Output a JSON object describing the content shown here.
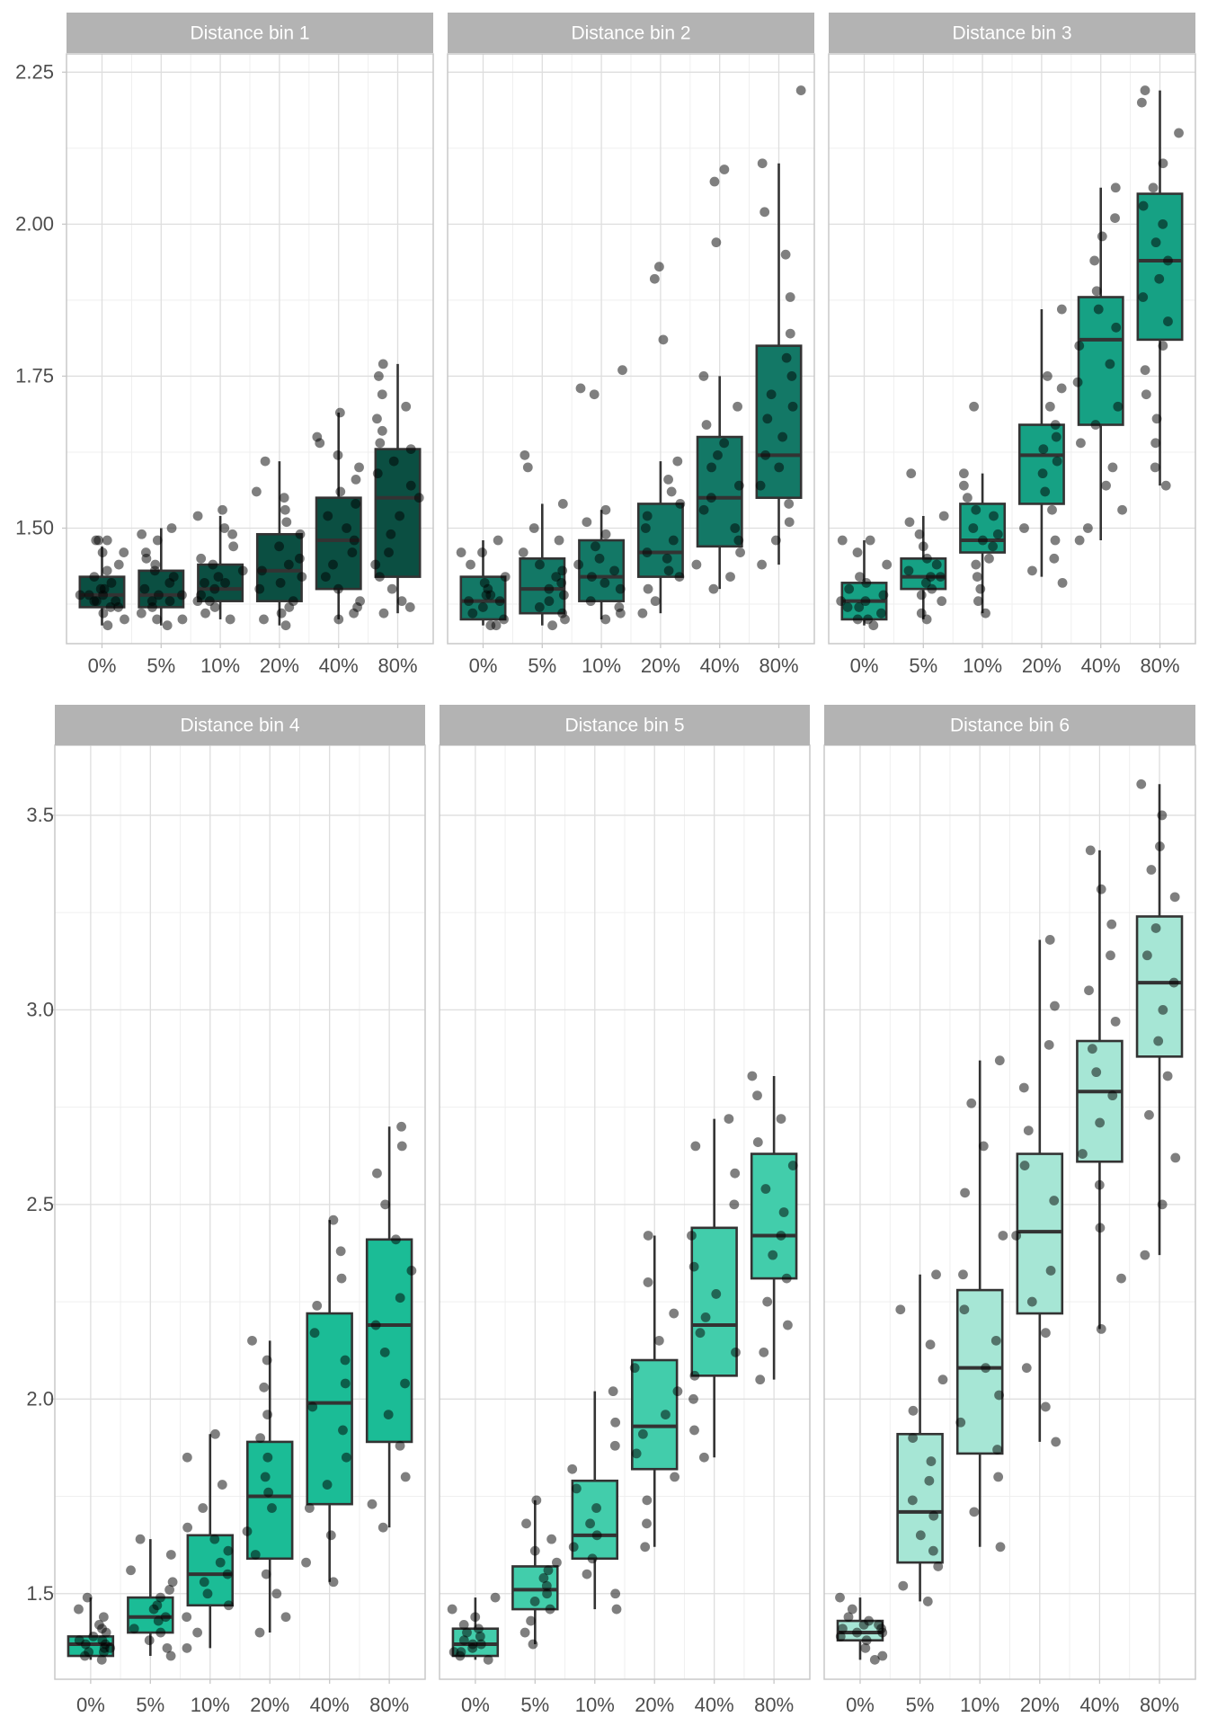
{
  "colors": {
    "strip_fill": "#b3b3b3",
    "strip_text": "#ffffff",
    "grid_major": "#dedede",
    "grid_minor": "#efefef",
    "panel_border": "#c8c8c8",
    "tick_text": "#4d4d4d",
    "box_border": "#333333",
    "points": "rgba(0,0,0,0.5)",
    "row1_fills": [
      "#0b4f42",
      "#137866",
      "#16a184"
    ],
    "row2_fills": [
      "#1bbc96",
      "#42cdab",
      "#a6e6d5"
    ]
  },
  "chart_data": [
    {
      "type": "box",
      "title": "Distance bin 1",
      "categories": [
        "0%",
        "5%",
        "10%",
        "20%",
        "40%",
        "80%"
      ],
      "ylim": [
        1.31,
        2.28
      ],
      "yticks": [
        "1.50",
        "1.75",
        "2.00",
        "2.25"
      ],
      "boxes": [
        {
          "q1": 1.37,
          "median": 1.39,
          "q3": 1.42,
          "wlo": 1.34,
          "whi": 1.47
        },
        {
          "q1": 1.37,
          "median": 1.39,
          "q3": 1.43,
          "wlo": 1.34,
          "whi": 1.5
        },
        {
          "q1": 1.38,
          "median": 1.4,
          "q3": 1.44,
          "wlo": 1.35,
          "whi": 1.52
        },
        {
          "q1": 1.38,
          "median": 1.43,
          "q3": 1.49,
          "wlo": 1.34,
          "whi": 1.61
        },
        {
          "q1": 1.4,
          "median": 1.48,
          "q3": 1.55,
          "wlo": 1.35,
          "whi": 1.69
        },
        {
          "q1": 1.42,
          "median": 1.55,
          "q3": 1.63,
          "wlo": 1.36,
          "whi": 1.77
        }
      ],
      "points": [
        [
          1.34,
          1.35,
          1.36,
          1.37,
          1.37,
          1.38,
          1.38,
          1.38,
          1.39,
          1.39,
          1.39,
          1.4,
          1.4,
          1.41,
          1.42,
          1.43,
          1.44,
          1.46,
          1.46,
          1.48,
          1.48,
          1.48
        ],
        [
          1.34,
          1.35,
          1.35,
          1.36,
          1.37,
          1.38,
          1.38,
          1.39,
          1.39,
          1.4,
          1.41,
          1.42,
          1.43,
          1.44,
          1.45,
          1.46,
          1.48,
          1.49,
          1.5
        ],
        [
          1.35,
          1.36,
          1.37,
          1.38,
          1.38,
          1.39,
          1.4,
          1.41,
          1.41,
          1.42,
          1.43,
          1.44,
          1.45,
          1.47,
          1.49,
          1.5,
          1.52,
          1.53
        ],
        [
          1.34,
          1.35,
          1.36,
          1.37,
          1.38,
          1.4,
          1.41,
          1.42,
          1.43,
          1.44,
          1.45,
          1.47,
          1.49,
          1.51,
          1.53,
          1.55,
          1.56,
          1.61
        ],
        [
          1.35,
          1.36,
          1.37,
          1.38,
          1.4,
          1.42,
          1.44,
          1.46,
          1.48,
          1.5,
          1.52,
          1.54,
          1.56,
          1.58,
          1.6,
          1.62,
          1.64,
          1.65,
          1.69
        ],
        [
          1.36,
          1.37,
          1.38,
          1.4,
          1.42,
          1.44,
          1.46,
          1.49,
          1.52,
          1.55,
          1.57,
          1.59,
          1.61,
          1.63,
          1.64,
          1.66,
          1.68,
          1.7,
          1.72,
          1.75,
          1.77
        ]
      ]
    },
    {
      "type": "box",
      "title": "Distance bin 2",
      "categories": [
        "0%",
        "5%",
        "10%",
        "20%",
        "40%",
        "80%"
      ],
      "ylim": [
        1.31,
        2.28
      ],
      "yticks": [
        "1.50",
        "1.75",
        "2.00",
        "2.25"
      ],
      "boxes": [
        {
          "q1": 1.35,
          "median": 1.38,
          "q3": 1.42,
          "wlo": 1.34,
          "whi": 1.48
        },
        {
          "q1": 1.36,
          "median": 1.4,
          "q3": 1.45,
          "wlo": 1.34,
          "whi": 1.54
        },
        {
          "q1": 1.38,
          "median": 1.42,
          "q3": 1.48,
          "wlo": 1.35,
          "whi": 1.53
        },
        {
          "q1": 1.42,
          "median": 1.46,
          "q3": 1.54,
          "wlo": 1.36,
          "whi": 1.61
        },
        {
          "q1": 1.47,
          "median": 1.55,
          "q3": 1.65,
          "wlo": 1.4,
          "whi": 1.75
        },
        {
          "q1": 1.55,
          "median": 1.62,
          "q3": 1.8,
          "wlo": 1.44,
          "whi": 2.1
        }
      ],
      "points": [
        [
          1.34,
          1.34,
          1.35,
          1.36,
          1.37,
          1.38,
          1.38,
          1.39,
          1.39,
          1.4,
          1.41,
          1.42,
          1.44,
          1.46,
          1.46,
          1.48
        ],
        [
          1.34,
          1.35,
          1.36,
          1.37,
          1.38,
          1.39,
          1.4,
          1.41,
          1.42,
          1.43,
          1.44,
          1.46,
          1.48,
          1.5,
          1.54,
          1.6,
          1.62
        ],
        [
          1.35,
          1.36,
          1.37,
          1.38,
          1.4,
          1.41,
          1.42,
          1.43,
          1.44,
          1.45,
          1.47,
          1.49,
          1.51,
          1.53,
          1.72,
          1.73,
          1.76
        ],
        [
          1.36,
          1.38,
          1.4,
          1.42,
          1.43,
          1.45,
          1.46,
          1.48,
          1.5,
          1.52,
          1.54,
          1.56,
          1.58,
          1.61,
          1.81,
          1.91,
          1.93
        ],
        [
          1.4,
          1.42,
          1.44,
          1.46,
          1.48,
          1.5,
          1.53,
          1.55,
          1.57,
          1.6,
          1.62,
          1.64,
          1.67,
          1.7,
          1.75,
          1.97,
          2.07,
          2.09
        ],
        [
          1.44,
          1.48,
          1.51,
          1.54,
          1.57,
          1.6,
          1.62,
          1.65,
          1.68,
          1.7,
          1.72,
          1.75,
          1.78,
          1.82,
          1.88,
          1.95,
          2.02,
          2.1,
          2.22
        ]
      ]
    },
    {
      "type": "box",
      "title": "Distance bin 3",
      "categories": [
        "0%",
        "5%",
        "10%",
        "20%",
        "40%",
        "80%"
      ],
      "ylim": [
        1.31,
        2.28
      ],
      "yticks": [
        "1.50",
        "1.75",
        "2.00",
        "2.25"
      ],
      "boxes": [
        {
          "q1": 1.35,
          "median": 1.38,
          "q3": 1.41,
          "wlo": 1.34,
          "whi": 1.48
        },
        {
          "q1": 1.4,
          "median": 1.42,
          "q3": 1.45,
          "wlo": 1.35,
          "whi": 1.52
        },
        {
          "q1": 1.46,
          "median": 1.48,
          "q3": 1.54,
          "wlo": 1.36,
          "whi": 1.59
        },
        {
          "q1": 1.54,
          "median": 1.62,
          "q3": 1.67,
          "wlo": 1.42,
          "whi": 1.86
        },
        {
          "q1": 1.67,
          "median": 1.81,
          "q3": 1.88,
          "wlo": 1.48,
          "whi": 2.06
        },
        {
          "q1": 1.81,
          "median": 1.94,
          "q3": 2.05,
          "wlo": 1.57,
          "whi": 2.22
        }
      ],
      "points": [
        [
          1.34,
          1.35,
          1.35,
          1.36,
          1.37,
          1.37,
          1.38,
          1.38,
          1.39,
          1.4,
          1.41,
          1.42,
          1.44,
          1.46,
          1.48,
          1.48
        ],
        [
          1.35,
          1.36,
          1.38,
          1.39,
          1.4,
          1.41,
          1.42,
          1.42,
          1.43,
          1.44,
          1.45,
          1.47,
          1.49,
          1.51,
          1.52,
          1.59
        ],
        [
          1.36,
          1.38,
          1.4,
          1.42,
          1.44,
          1.45,
          1.47,
          1.48,
          1.49,
          1.5,
          1.52,
          1.53,
          1.55,
          1.57,
          1.59,
          1.7
        ],
        [
          1.41,
          1.43,
          1.45,
          1.48,
          1.5,
          1.53,
          1.56,
          1.59,
          1.61,
          1.63,
          1.65,
          1.67,
          1.7,
          1.73,
          1.75,
          1.86
        ],
        [
          1.48,
          1.5,
          1.53,
          1.57,
          1.6,
          1.64,
          1.67,
          1.7,
          1.74,
          1.77,
          1.8,
          1.83,
          1.86,
          1.89,
          1.94,
          1.98,
          2.01,
          2.06
        ],
        [
          1.57,
          1.6,
          1.64,
          1.68,
          1.72,
          1.76,
          1.8,
          1.84,
          1.88,
          1.91,
          1.94,
          1.97,
          2.0,
          2.03,
          2.06,
          2.1,
          2.15,
          2.2,
          2.22
        ]
      ]
    },
    {
      "type": "box",
      "title": "Distance bin 4",
      "categories": [
        "0%",
        "5%",
        "10%",
        "20%",
        "40%",
        "80%"
      ],
      "ylim": [
        1.28,
        3.68
      ],
      "yticks": [
        "1.5",
        "2.0",
        "2.5",
        "3.0",
        "3.5"
      ],
      "boxes": [
        {
          "q1": 1.34,
          "median": 1.37,
          "q3": 1.39,
          "wlo": 1.33,
          "whi": 1.49
        },
        {
          "q1": 1.4,
          "median": 1.44,
          "q3": 1.49,
          "wlo": 1.34,
          "whi": 1.64
        },
        {
          "q1": 1.47,
          "median": 1.55,
          "q3": 1.65,
          "wlo": 1.36,
          "whi": 1.91
        },
        {
          "q1": 1.59,
          "median": 1.75,
          "q3": 1.89,
          "wlo": 1.4,
          "whi": 2.15
        },
        {
          "q1": 1.73,
          "median": 1.99,
          "q3": 2.22,
          "wlo": 1.53,
          "whi": 2.46
        },
        {
          "q1": 1.89,
          "median": 2.19,
          "q3": 2.41,
          "wlo": 1.67,
          "whi": 2.7
        }
      ],
      "points": [
        [
          1.33,
          1.34,
          1.35,
          1.35,
          1.36,
          1.36,
          1.37,
          1.37,
          1.38,
          1.38,
          1.39,
          1.4,
          1.41,
          1.42,
          1.44,
          1.46,
          1.49
        ],
        [
          1.34,
          1.36,
          1.38,
          1.4,
          1.41,
          1.43,
          1.44,
          1.46,
          1.47,
          1.49,
          1.51,
          1.53,
          1.56,
          1.6,
          1.64
        ],
        [
          1.36,
          1.4,
          1.44,
          1.47,
          1.5,
          1.53,
          1.55,
          1.58,
          1.61,
          1.64,
          1.67,
          1.72,
          1.78,
          1.85,
          1.91
        ],
        [
          1.4,
          1.44,
          1.5,
          1.55,
          1.6,
          1.66,
          1.72,
          1.76,
          1.8,
          1.85,
          1.9,
          1.96,
          2.03,
          2.1,
          2.15
        ],
        [
          1.53,
          1.58,
          1.65,
          1.72,
          1.78,
          1.85,
          1.92,
          1.98,
          2.04,
          2.1,
          2.17,
          2.24,
          2.31,
          2.38,
          2.46
        ],
        [
          1.67,
          1.73,
          1.8,
          1.88,
          1.96,
          2.04,
          2.12,
          2.19,
          2.26,
          2.33,
          2.41,
          2.5,
          2.58,
          2.65,
          2.7
        ]
      ]
    },
    {
      "type": "box",
      "title": "Distance bin 5",
      "categories": [
        "0%",
        "5%",
        "10%",
        "20%",
        "40%",
        "80%"
      ],
      "ylim": [
        1.28,
        3.68
      ],
      "yticks": [
        "1.5",
        "2.0",
        "2.5",
        "3.0",
        "3.5"
      ],
      "boxes": [
        {
          "q1": 1.34,
          "median": 1.37,
          "q3": 1.41,
          "wlo": 1.33,
          "whi": 1.49
        },
        {
          "q1": 1.46,
          "median": 1.51,
          "q3": 1.57,
          "wlo": 1.37,
          "whi": 1.74
        },
        {
          "q1": 1.59,
          "median": 1.65,
          "q3": 1.79,
          "wlo": 1.46,
          "whi": 2.02
        },
        {
          "q1": 1.82,
          "median": 1.93,
          "q3": 2.1,
          "wlo": 1.62,
          "whi": 2.42
        },
        {
          "q1": 2.06,
          "median": 2.19,
          "q3": 2.44,
          "wlo": 1.85,
          "whi": 2.72
        },
        {
          "q1": 2.31,
          "median": 2.42,
          "q3": 2.63,
          "wlo": 2.05,
          "whi": 2.83
        }
      ],
      "points": [
        [
          1.33,
          1.34,
          1.35,
          1.35,
          1.36,
          1.37,
          1.37,
          1.38,
          1.39,
          1.4,
          1.41,
          1.42,
          1.44,
          1.46,
          1.49
        ],
        [
          1.37,
          1.4,
          1.43,
          1.46,
          1.48,
          1.5,
          1.52,
          1.54,
          1.56,
          1.58,
          1.61,
          1.64,
          1.68,
          1.74
        ],
        [
          1.46,
          1.5,
          1.55,
          1.59,
          1.62,
          1.65,
          1.68,
          1.72,
          1.77,
          1.82,
          1.88,
          1.94,
          2.02
        ],
        [
          1.62,
          1.68,
          1.74,
          1.8,
          1.86,
          1.91,
          1.96,
          2.02,
          2.08,
          2.15,
          2.22,
          2.3,
          2.42
        ],
        [
          1.85,
          1.92,
          2.0,
          2.06,
          2.12,
          2.17,
          2.21,
          2.27,
          2.34,
          2.42,
          2.5,
          2.58,
          2.65,
          2.72
        ],
        [
          2.05,
          2.12,
          2.19,
          2.25,
          2.31,
          2.37,
          2.42,
          2.48,
          2.54,
          2.6,
          2.66,
          2.72,
          2.78,
          2.83
        ]
      ]
    },
    {
      "type": "box",
      "title": "Distance bin 6",
      "categories": [
        "0%",
        "5%",
        "10%",
        "20%",
        "40%",
        "80%"
      ],
      "ylim": [
        1.28,
        3.68
      ],
      "yticks": [
        "1.5",
        "2.0",
        "2.5",
        "3.0",
        "3.5"
      ],
      "boxes": [
        {
          "q1": 1.38,
          "median": 1.4,
          "q3": 1.43,
          "wlo": 1.33,
          "whi": 1.49
        },
        {
          "q1": 1.58,
          "median": 1.71,
          "q3": 1.91,
          "wlo": 1.48,
          "whi": 2.32
        },
        {
          "q1": 1.86,
          "median": 2.08,
          "q3": 2.28,
          "wlo": 1.62,
          "whi": 2.87
        },
        {
          "q1": 2.22,
          "median": 2.43,
          "q3": 2.63,
          "wlo": 1.89,
          "whi": 3.18
        },
        {
          "q1": 2.61,
          "median": 2.79,
          "q3": 2.92,
          "wlo": 2.18,
          "whi": 3.41
        },
        {
          "q1": 2.88,
          "median": 3.07,
          "q3": 3.24,
          "wlo": 2.37,
          "whi": 3.58
        }
      ],
      "points": [
        [
          1.33,
          1.34,
          1.36,
          1.38,
          1.39,
          1.4,
          1.4,
          1.41,
          1.41,
          1.42,
          1.42,
          1.43,
          1.44,
          1.46,
          1.49
        ],
        [
          1.48,
          1.52,
          1.57,
          1.61,
          1.65,
          1.7,
          1.74,
          1.79,
          1.84,
          1.9,
          1.97,
          2.05,
          2.14,
          2.23,
          2.32
        ],
        [
          1.62,
          1.71,
          1.8,
          1.87,
          1.94,
          2.01,
          2.08,
          2.15,
          2.23,
          2.32,
          2.42,
          2.53,
          2.65,
          2.76,
          2.87
        ],
        [
          1.89,
          1.98,
          2.08,
          2.17,
          2.25,
          2.33,
          2.42,
          2.51,
          2.6,
          2.69,
          2.8,
          2.91,
          3.01,
          3.18
        ],
        [
          2.18,
          2.31,
          2.44,
          2.55,
          2.63,
          2.71,
          2.78,
          2.84,
          2.9,
          2.97,
          3.05,
          3.14,
          3.22,
          3.31,
          3.41
        ],
        [
          2.37,
          2.5,
          2.62,
          2.73,
          2.83,
          2.92,
          3.0,
          3.07,
          3.14,
          3.21,
          3.29,
          3.36,
          3.42,
          3.5,
          3.58
        ]
      ]
    }
  ]
}
